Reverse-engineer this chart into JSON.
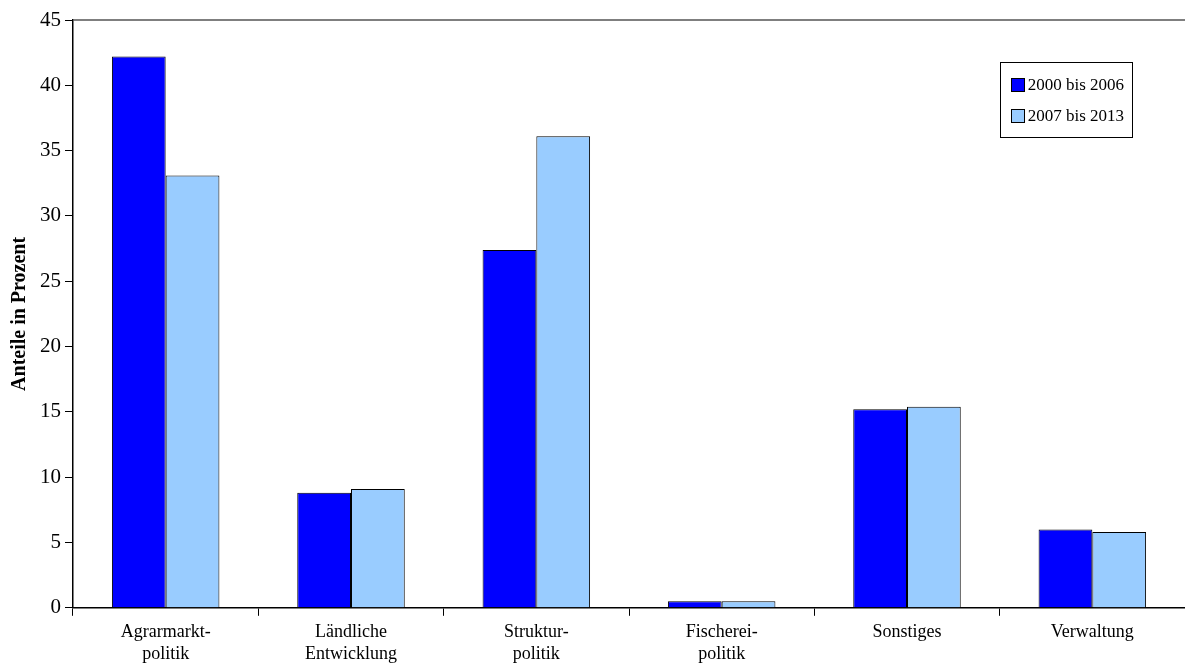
{
  "chart_data": {
    "type": "bar",
    "ylabel": "Anteile in Prozent",
    "categories": [
      "Agrarmarkt-\npolitik",
      "Ländliche\nEntwicklung",
      "Struktur-\npolitik",
      "Fischerei-\npolitik",
      "Sonstiges",
      "Verwaltung"
    ],
    "series": [
      {
        "name": "2000 bis 2006",
        "color": "#0000ff",
        "values": [
          42.2,
          8.8,
          27.4,
          0.5,
          15.2,
          6.0
        ]
      },
      {
        "name": "2007 bis 2013",
        "color": "#99ccff",
        "values": [
          33.1,
          9.1,
          36.1,
          0.5,
          15.4,
          5.8
        ]
      }
    ],
    "ylim": [
      0,
      45
    ],
    "yticks": [
      0,
      5,
      10,
      15,
      20,
      25,
      30,
      35,
      40,
      45
    ],
    "grid": false,
    "legend": "top right"
  }
}
